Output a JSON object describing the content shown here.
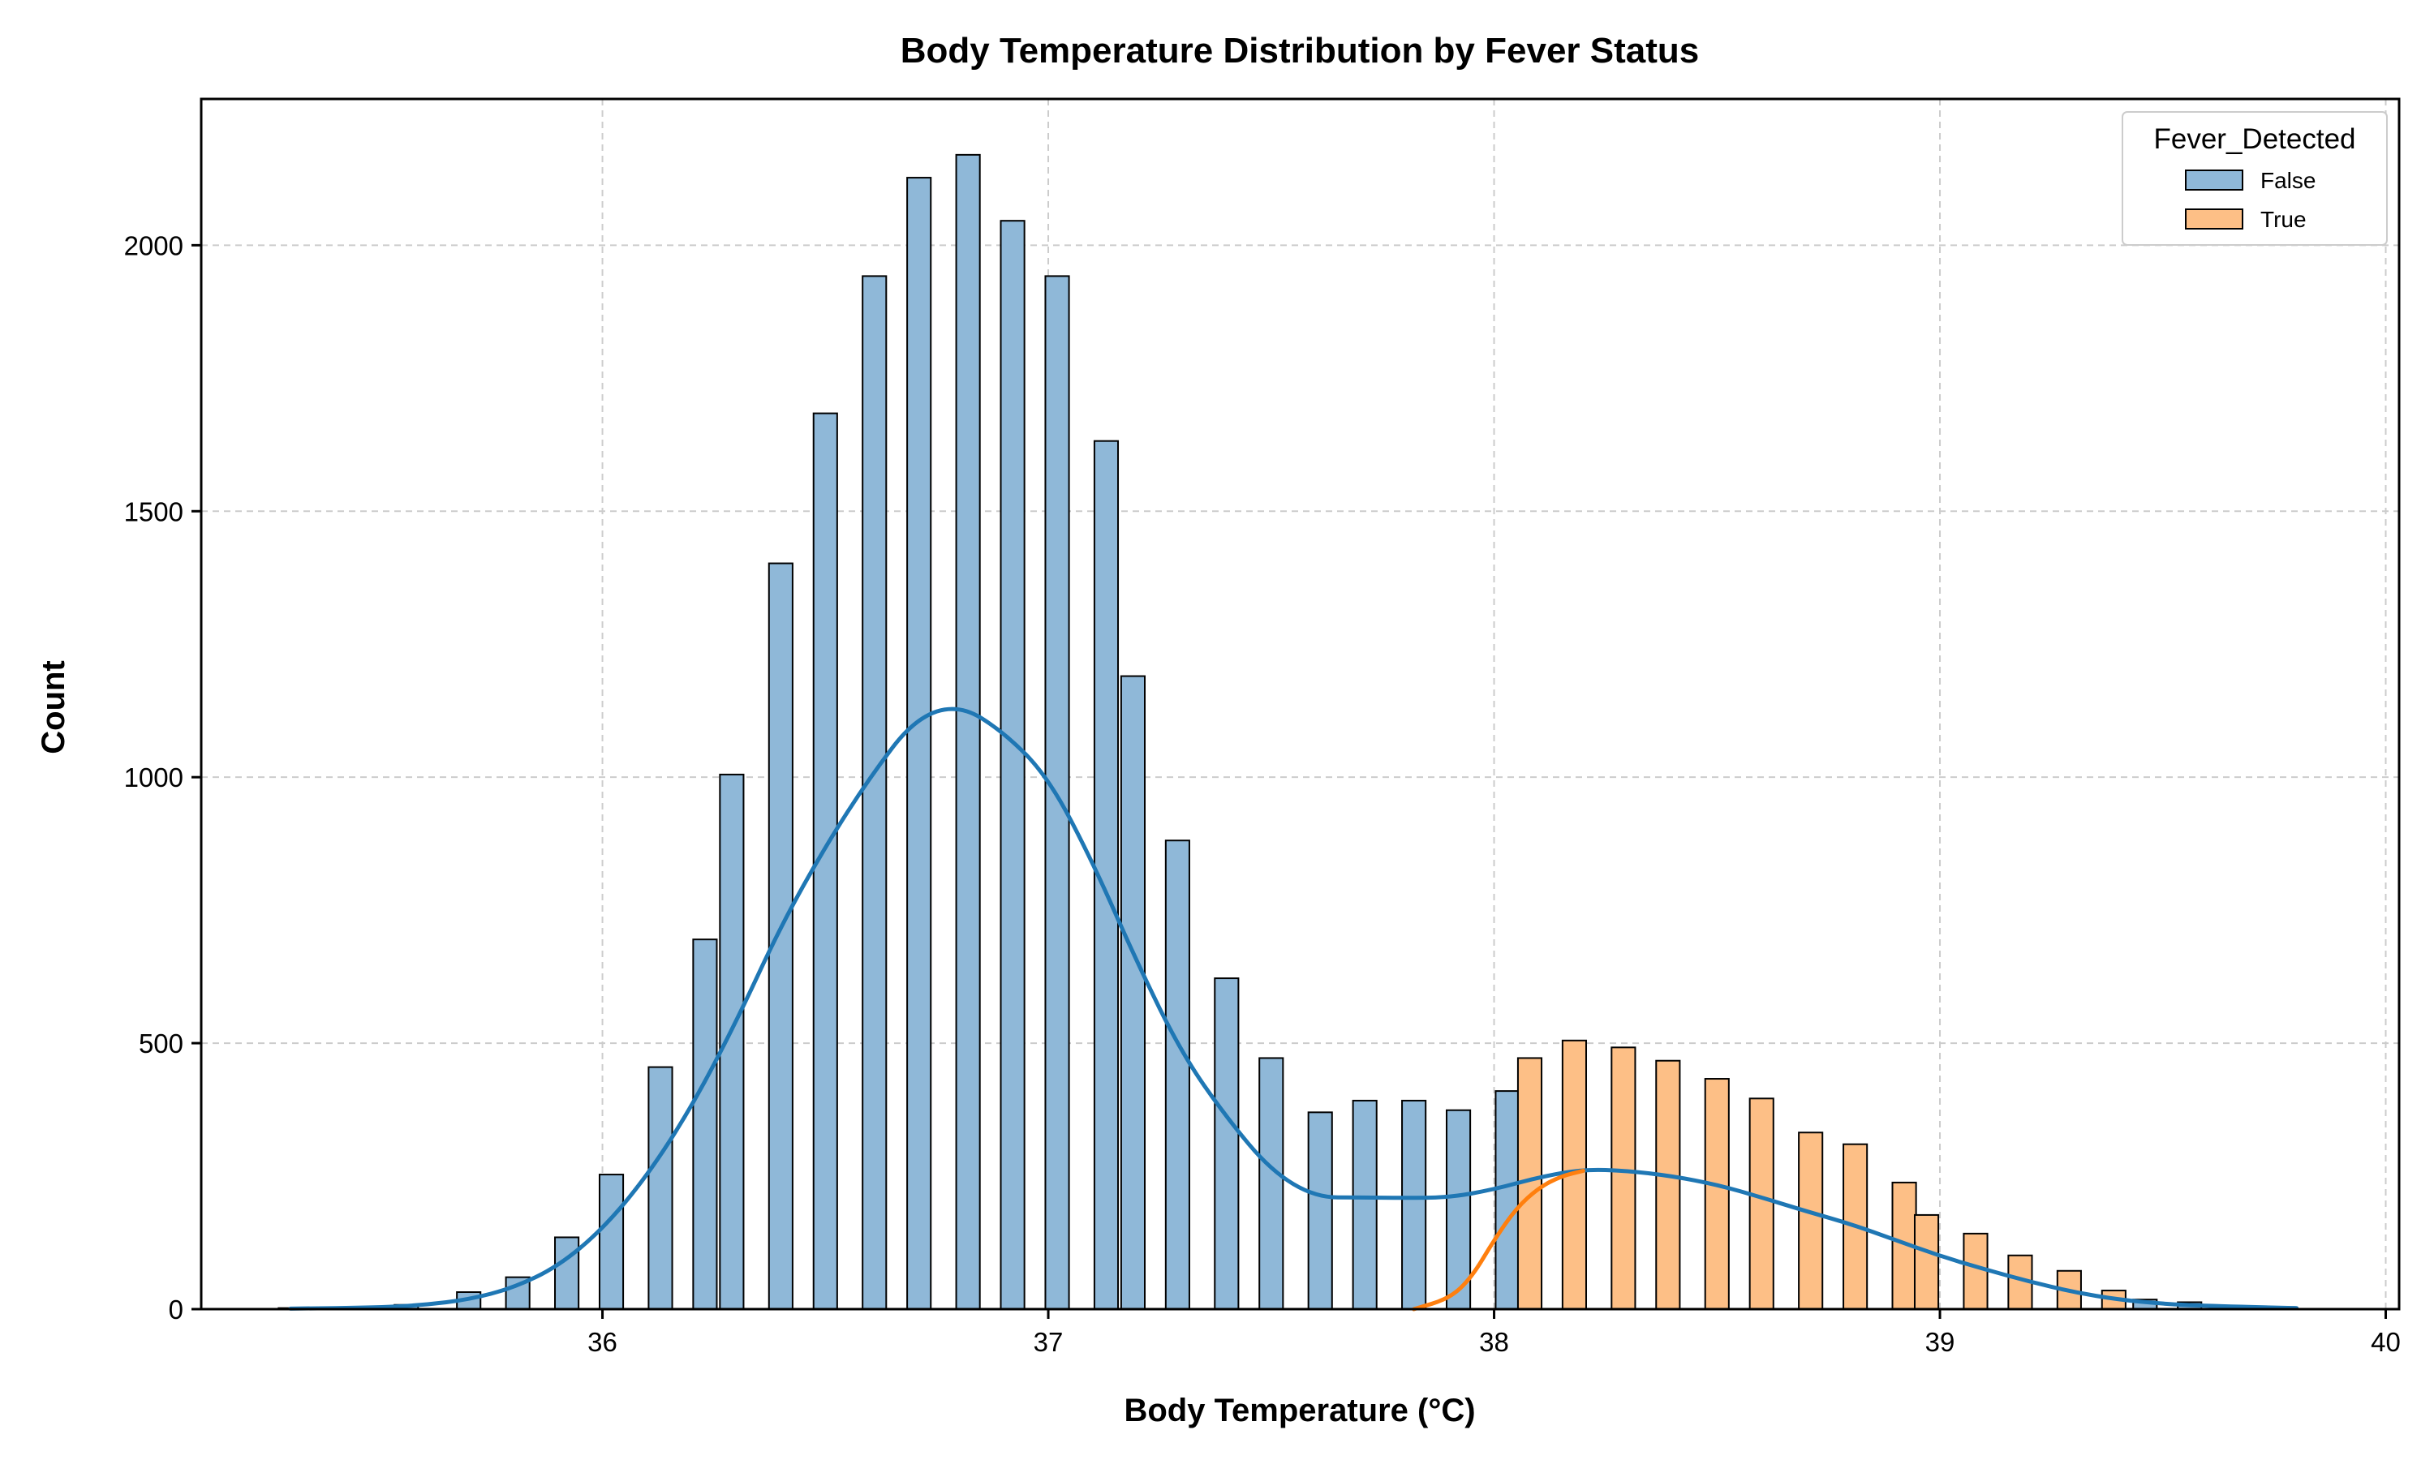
{
  "chart_data": {
    "type": "bar",
    "title": "Body Temperature Distribution by Fever Status",
    "xlabel": "Body Temperature (°C)",
    "ylabel": "Count",
    "xlim": [
      35.1,
      40.03
    ],
    "ylim": [
      0,
      2275
    ],
    "x_ticks": [
      36,
      37,
      38,
      39,
      40
    ],
    "x_tick_labels": [
      "36",
      "37",
      "38",
      "39",
      "40"
    ],
    "y_ticks": [
      0,
      500,
      1000,
      1500,
      2000
    ],
    "y_tick_labels": [
      "0",
      "500",
      "1000",
      "1500",
      "2000"
    ],
    "grid": true,
    "legend": {
      "title": "Fever_Detected",
      "placement": "top-right"
    },
    "bin_width": 0.053,
    "series": [
      {
        "name": "False",
        "color": "#8FB8D8",
        "kde_color": "#1F77B4",
        "x": [
          35.3,
          35.56,
          35.7,
          35.81,
          35.92,
          36.02,
          36.13,
          36.23,
          36.29,
          36.4,
          36.5,
          36.61,
          36.71,
          36.82,
          36.92,
          37.02,
          37.13,
          37.19,
          37.29,
          37.4,
          37.5,
          37.61,
          37.71,
          37.82,
          37.92,
          38.03,
          39.46,
          39.56,
          39.77
        ],
        "values": [
          2,
          8,
          32,
          60,
          135,
          253,
          455,
          695,
          1005,
          1402,
          1684,
          1942,
          2127,
          2170,
          2046,
          1942,
          1632,
          1190,
          881,
          622,
          472,
          370,
          392,
          392,
          374,
          410,
          18,
          13,
          4
        ],
        "kde": [
          [
            35.3,
            1
          ],
          [
            35.5,
            3
          ],
          [
            35.6,
            8
          ],
          [
            35.7,
            18
          ],
          [
            35.8,
            40
          ],
          [
            35.9,
            80
          ],
          [
            36.0,
            150
          ],
          [
            36.1,
            250
          ],
          [
            36.2,
            380
          ],
          [
            36.3,
            540
          ],
          [
            36.4,
            720
          ],
          [
            36.5,
            870
          ],
          [
            36.6,
            1000
          ],
          [
            36.7,
            1110
          ],
          [
            36.8,
            1137
          ],
          [
            36.9,
            1085
          ],
          [
            37.0,
            1000
          ],
          [
            37.1,
            840
          ],
          [
            37.2,
            650
          ],
          [
            37.3,
            480
          ],
          [
            37.4,
            360
          ],
          [
            37.5,
            260
          ],
          [
            37.6,
            210
          ],
          [
            37.7,
            210
          ],
          [
            37.8,
            209
          ],
          [
            37.9,
            210
          ],
          [
            38.0,
            225
          ],
          [
            38.1,
            248
          ],
          [
            38.2,
            263
          ],
          [
            38.3,
            260
          ],
          [
            38.4,
            250
          ],
          [
            38.5,
            234
          ],
          [
            38.6,
            210
          ],
          [
            38.7,
            184
          ],
          [
            38.8,
            160
          ],
          [
            38.9,
            130
          ],
          [
            39.0,
            100
          ],
          [
            39.1,
            75
          ],
          [
            39.2,
            52
          ],
          [
            39.3,
            32
          ],
          [
            39.4,
            18
          ],
          [
            39.5,
            10
          ],
          [
            39.6,
            6
          ],
          [
            39.8,
            2
          ]
        ]
      },
      {
        "name": "True",
        "color": "#FDBF86",
        "kde_color": "#FF7F0E",
        "x": [
          38.08,
          38.18,
          38.29,
          38.39,
          38.5,
          38.6,
          38.71,
          38.81,
          38.92,
          38.97,
          39.08,
          39.18,
          39.29,
          39.39
        ],
        "values": [
          472,
          505,
          492,
          467,
          433,
          396,
          332,
          310,
          238,
          177,
          142,
          101,
          72,
          35
        ],
        "kde": [
          [
            37.82,
            0
          ],
          [
            37.9,
            20
          ],
          [
            37.95,
            60
          ],
          [
            38.0,
            130
          ],
          [
            38.05,
            190
          ],
          [
            38.1,
            228
          ],
          [
            38.15,
            250
          ],
          [
            38.2,
            260
          ]
        ]
      }
    ]
  }
}
